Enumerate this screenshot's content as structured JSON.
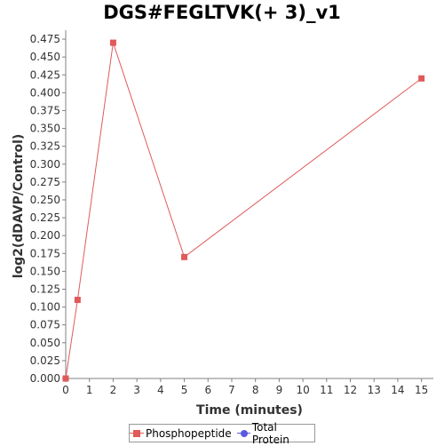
{
  "chart_data": {
    "type": "line",
    "title": "DGS#FEGLTVK(+ 3)_v1",
    "xlabel": "Time (minutes)",
    "ylabel": "log2(dDAVP/Control)",
    "xlim": [
      0,
      15.5
    ],
    "ylim": [
      0,
      0.4875
    ],
    "xticks": [
      0,
      1,
      2,
      3,
      4,
      5,
      6,
      7,
      8,
      9,
      10,
      11,
      12,
      13,
      14,
      15
    ],
    "yticks": [
      "0.000",
      "0.025",
      "0.050",
      "0.075",
      "0.100",
      "0.125",
      "0.150",
      "0.175",
      "0.200",
      "0.225",
      "0.250",
      "0.275",
      "0.300",
      "0.325",
      "0.350",
      "0.375",
      "0.400",
      "0.425",
      "0.450",
      "0.475"
    ],
    "grid": false,
    "legend_position": "bottom",
    "series": [
      {
        "name": "Phosphopeptide",
        "color": "#e05a5a",
        "marker": "square",
        "x": [
          0,
          0.5,
          2,
          5,
          15
        ],
        "y": [
          0.0,
          0.11,
          0.47,
          0.17,
          0.42
        ]
      },
      {
        "name": "Total Protein",
        "color": "#5a5ae0",
        "marker": "circle",
        "x": [],
        "y": []
      }
    ]
  }
}
